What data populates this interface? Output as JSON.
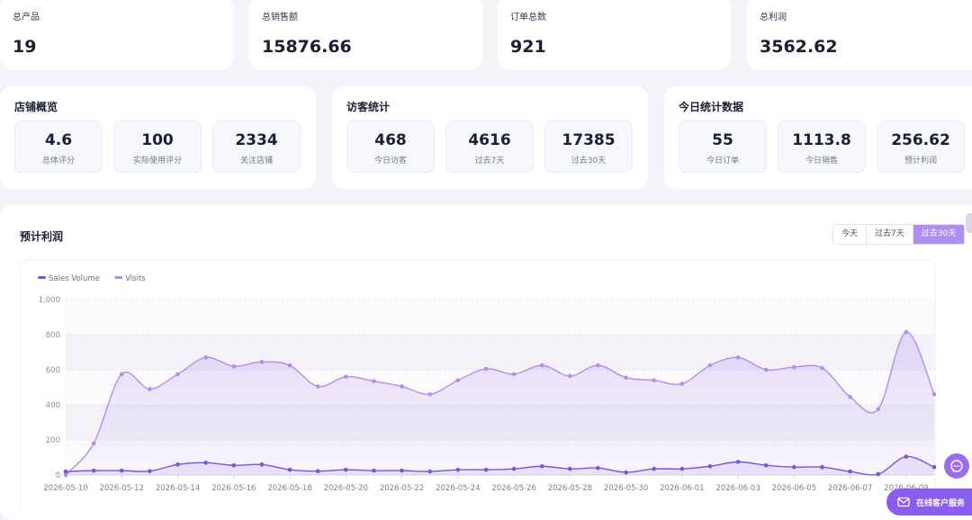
{
  "stats": [
    {
      "label": "总产品",
      "value": "19"
    },
    {
      "label": "总销售额",
      "value": "15876.66"
    },
    {
      "label": "订单总数",
      "value": "921"
    },
    {
      "label": "总利润",
      "value": "3562.62"
    }
  ],
  "panels": [
    {
      "title": "店铺概览",
      "metrics": [
        {
          "value": "4.6",
          "label": "总体评分"
        },
        {
          "value": "100",
          "label": "实际使用评分"
        },
        {
          "value": "2334",
          "label": "关注店铺"
        }
      ]
    },
    {
      "title": "访客统计",
      "metrics": [
        {
          "value": "468",
          "label": "今日访客"
        },
        {
          "value": "4616",
          "label": "过去7天"
        },
        {
          "value": "17385",
          "label": "过去30天"
        }
      ]
    },
    {
      "title": "今日统计数据",
      "metrics": [
        {
          "value": "55",
          "label": "今日订单"
        },
        {
          "value": "1113.8",
          "label": "今日销售"
        },
        {
          "value": "256.62",
          "label": "预计利润"
        }
      ]
    }
  ],
  "chart_section": {
    "title": "预计利润",
    "range_options": [
      "今天",
      "过去7天",
      "过去30天"
    ],
    "selected_range": "过去30天"
  },
  "chat_icon": "chat-bubble-icon",
  "service_button": {
    "label": "在线客户服务",
    "icon": "mail-icon"
  },
  "colors": {
    "accent": "#8a5cf0",
    "sales_line": "#7b52e0",
    "visits_line": "#b08ef0"
  },
  "chart_data": {
    "type": "area",
    "x": [
      "2026-05-10",
      "2026-05-11",
      "2026-05-12",
      "2026-05-13",
      "2026-05-14",
      "2026-05-15",
      "2026-05-16",
      "2026-05-17",
      "2026-05-18",
      "2026-05-19",
      "2026-05-20",
      "2026-05-21",
      "2026-05-22",
      "2026-05-23",
      "2026-05-24",
      "2026-05-25",
      "2026-05-26",
      "2026-05-27",
      "2026-05-28",
      "2026-05-29",
      "2026-05-30",
      "2026-05-31",
      "2026-06-01",
      "2026-06-02",
      "2026-06-03",
      "2026-06-04",
      "2026-06-05",
      "2026-06-06",
      "2026-06-07",
      "2026-06-08",
      "2026-06-09",
      "2026-06-10"
    ],
    "xticks": [
      "2026-05-10",
      "2026-05-12",
      "2026-05-14",
      "2026-05-16",
      "2026-05-18",
      "2026-05-20",
      "2026-05-22",
      "2026-05-24",
      "2026-05-26",
      "2026-05-28",
      "2026-05-30",
      "2026-06-01",
      "2026-06-03",
      "2026-06-05",
      "2026-06-07",
      "2026-06-09"
    ],
    "series": [
      {
        "name": "Sales Volume",
        "values": [
          20,
          25,
          25,
          22,
          60,
          70,
          55,
          60,
          30,
          22,
          30,
          25,
          25,
          20,
          30,
          30,
          35,
          50,
          35,
          40,
          15,
          35,
          35,
          50,
          75,
          55,
          45,
          45,
          20,
          5,
          105,
          45
        ]
      },
      {
        "name": "Visits",
        "values": [
          0,
          180,
          575,
          490,
          575,
          670,
          620,
          645,
          625,
          505,
          560,
          535,
          505,
          460,
          540,
          605,
          575,
          625,
          565,
          625,
          555,
          540,
          520,
          625,
          670,
          600,
          615,
          610,
          445,
          375,
          815,
          460
        ]
      }
    ],
    "ylim": [
      0,
      1000
    ],
    "yticks": [
      "0",
      "200",
      "400",
      "600",
      "800",
      "1,000"
    ],
    "grid": true,
    "legend": "top-left"
  }
}
